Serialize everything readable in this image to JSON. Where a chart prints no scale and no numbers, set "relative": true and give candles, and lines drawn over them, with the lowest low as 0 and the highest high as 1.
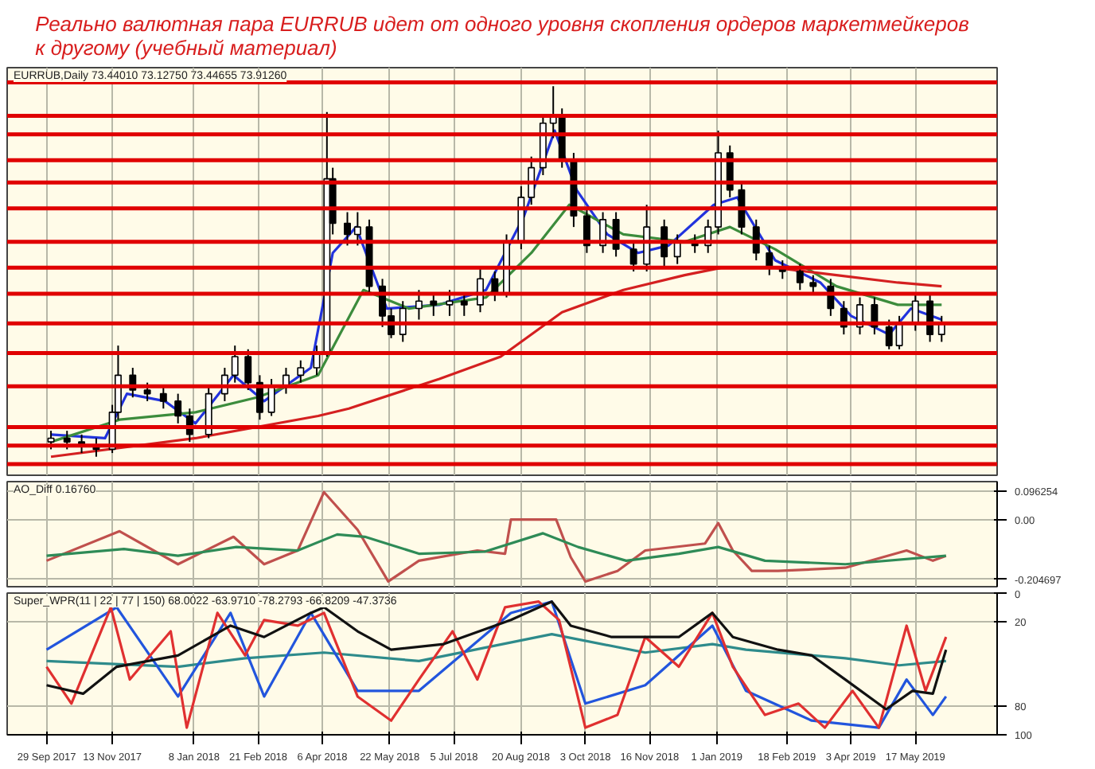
{
  "chart_data": [
    {
      "type": "candlestick",
      "title": "Реально валютная пара EURRUB идет от одного уровня скопления ордеров маркетмейкеров к другому (учебный материал)",
      "annotations": [
        "EURRUB,Daily 73.44010 73.12750 73.44655 73.91260"
      ],
      "relative": true,
      "tick_labels": false,
      "grid": "x",
      "xlim": [
        "2017-09-02",
        "2019-07-12"
      ],
      "xticks": [
        {
          "value": "2017-09-29",
          "label": null
        },
        {
          "value": "2017-11-13",
          "label": null
        },
        {
          "value": "2018-01-08",
          "label": null
        },
        {
          "value": "2018-02-21",
          "label": null
        },
        {
          "value": "2018-04-06",
          "label": null
        },
        {
          "value": "2018-05-22",
          "label": null
        },
        {
          "value": "2018-07-05",
          "label": null
        },
        {
          "value": "2018-08-20",
          "label": null
        },
        {
          "value": "2018-10-03",
          "label": null
        },
        {
          "value": "2018-11-16",
          "label": null
        },
        {
          "value": "2019-01-01",
          "label": null
        },
        {
          "value": "2019-02-18",
          "label": null
        },
        {
          "value": "2019-04-03",
          "label": null
        },
        {
          "value": "2019-05-17",
          "label": null
        }
      ],
      "x": [
        "2017-10-02",
        "2017-10-13",
        "2017-10-23",
        "2017-11-02",
        "2017-11-13",
        "2017-11-17",
        "2017-11-27",
        "2017-12-07",
        "2017-12-18",
        "2017-12-28",
        "2018-01-05",
        "2018-01-18",
        "2018-01-29",
        "2018-02-05",
        "2018-02-14",
        "2018-02-22",
        "2018-03-02",
        "2018-03-12",
        "2018-03-22",
        "2018-04-02",
        "2018-04-09",
        "2018-04-13",
        "2018-04-23",
        "2018-04-30",
        "2018-05-08",
        "2018-05-17",
        "2018-05-23",
        "2018-05-31",
        "2018-06-11",
        "2018-06-21",
        "2018-07-02",
        "2018-07-12",
        "2018-07-23",
        "2018-08-02",
        "2018-08-10",
        "2018-08-20",
        "2018-08-27",
        "2018-09-04",
        "2018-09-11",
        "2018-09-17",
        "2018-09-25",
        "2018-10-04",
        "2018-10-15",
        "2018-10-24",
        "2018-11-05",
        "2018-11-14",
        "2018-11-26",
        "2018-12-05",
        "2018-12-17",
        "2018-12-26",
        "2019-01-02",
        "2019-01-10",
        "2019-01-18",
        "2019-01-28",
        "2019-02-06",
        "2019-02-15",
        "2019-02-27",
        "2019-03-08",
        "2019-03-20",
        "2019-03-29",
        "2019-04-09",
        "2019-04-19",
        "2019-04-29",
        "2019-05-06",
        "2019-05-17",
        "2019-05-27",
        "2019-06-04"
      ],
      "ohlc": [
        [
          0.04,
          0.07,
          0.02,
          0.05
        ],
        [
          0.05,
          0.07,
          0.02,
          0.04
        ],
        [
          0.04,
          0.06,
          0.01,
          0.03
        ],
        [
          0.03,
          0.05,
          0.0,
          0.02
        ],
        [
          0.02,
          0.14,
          0.01,
          0.12
        ],
        [
          0.12,
          0.3,
          0.1,
          0.22
        ],
        [
          0.22,
          0.24,
          0.16,
          0.18
        ],
        [
          0.18,
          0.2,
          0.15,
          0.17
        ],
        [
          0.17,
          0.19,
          0.13,
          0.15
        ],
        [
          0.15,
          0.17,
          0.09,
          0.11
        ],
        [
          0.11,
          0.13,
          0.04,
          0.06
        ],
        [
          0.06,
          0.19,
          0.05,
          0.17
        ],
        [
          0.17,
          0.24,
          0.15,
          0.22
        ],
        [
          0.22,
          0.3,
          0.2,
          0.27
        ],
        [
          0.27,
          0.29,
          0.18,
          0.2
        ],
        [
          0.2,
          0.22,
          0.1,
          0.12
        ],
        [
          0.12,
          0.21,
          0.11,
          0.19
        ],
        [
          0.19,
          0.24,
          0.17,
          0.22
        ],
        [
          0.22,
          0.26,
          0.2,
          0.24
        ],
        [
          0.24,
          0.3,
          0.22,
          0.28
        ],
        [
          0.28,
          0.93,
          0.27,
          0.75
        ],
        [
          0.75,
          0.78,
          0.6,
          0.63
        ],
        [
          0.63,
          0.66,
          0.57,
          0.6
        ],
        [
          0.6,
          0.66,
          0.57,
          0.62
        ],
        [
          0.62,
          0.64,
          0.44,
          0.46
        ],
        [
          0.46,
          0.48,
          0.35,
          0.38
        ],
        [
          0.38,
          0.4,
          0.32,
          0.33
        ],
        [
          0.33,
          0.42,
          0.31,
          0.4
        ],
        [
          0.4,
          0.45,
          0.37,
          0.42
        ],
        [
          0.42,
          0.44,
          0.38,
          0.41
        ],
        [
          0.41,
          0.45,
          0.38,
          0.42
        ],
        [
          0.42,
          0.44,
          0.38,
          0.41
        ],
        [
          0.41,
          0.51,
          0.39,
          0.48
        ],
        [
          0.48,
          0.5,
          0.42,
          0.44
        ],
        [
          0.44,
          0.6,
          0.43,
          0.58
        ],
        [
          0.58,
          0.73,
          0.56,
          0.7
        ],
        [
          0.7,
          0.81,
          0.68,
          0.78
        ],
        [
          0.78,
          0.92,
          0.76,
          0.9
        ],
        [
          0.9,
          1.0,
          0.86,
          0.92
        ],
        [
          0.92,
          0.94,
          0.78,
          0.8
        ],
        [
          0.8,
          0.82,
          0.62,
          0.65
        ],
        [
          0.65,
          0.67,
          0.55,
          0.57
        ],
        [
          0.57,
          0.66,
          0.55,
          0.64
        ],
        [
          0.64,
          0.66,
          0.54,
          0.56
        ],
        [
          0.56,
          0.58,
          0.5,
          0.52
        ],
        [
          0.52,
          0.68,
          0.5,
          0.62
        ],
        [
          0.62,
          0.64,
          0.51,
          0.54
        ],
        [
          0.54,
          0.6,
          0.52,
          0.58
        ],
        [
          0.58,
          0.6,
          0.55,
          0.57
        ],
        [
          0.57,
          0.64,
          0.55,
          0.62
        ],
        [
          0.62,
          0.88,
          0.6,
          0.82
        ],
        [
          0.82,
          0.84,
          0.7,
          0.72
        ],
        [
          0.72,
          0.74,
          0.6,
          0.62
        ],
        [
          0.62,
          0.64,
          0.53,
          0.55
        ],
        [
          0.55,
          0.57,
          0.49,
          0.51
        ],
        [
          0.51,
          0.53,
          0.48,
          0.5
        ],
        [
          0.5,
          0.52,
          0.45,
          0.47
        ],
        [
          0.47,
          0.49,
          0.44,
          0.46
        ],
        [
          0.46,
          0.48,
          0.38,
          0.4
        ],
        [
          0.4,
          0.42,
          0.33,
          0.35
        ],
        [
          0.35,
          0.43,
          0.33,
          0.41
        ],
        [
          0.41,
          0.43,
          0.33,
          0.35
        ],
        [
          0.35,
          0.37,
          0.29,
          0.3
        ],
        [
          0.3,
          0.38,
          0.29,
          0.36
        ],
        [
          0.36,
          0.44,
          0.34,
          0.42
        ],
        [
          0.42,
          0.44,
          0.31,
          0.33
        ],
        [
          0.33,
          0.38,
          0.31,
          0.36
        ]
      ],
      "series": [
        {
          "type": "line",
          "color": "#2233dd",
          "x": [
            "2017-10-02",
            "2017-11-08",
            "2017-11-23",
            "2017-12-19",
            "2018-01-09",
            "2018-02-04",
            "2018-02-25",
            "2018-03-29",
            "2018-04-13",
            "2018-04-29",
            "2018-05-20",
            "2018-06-25",
            "2018-07-27",
            "2018-08-22",
            "2018-09-12",
            "2018-09-27",
            "2018-10-18",
            "2018-11-08",
            "2018-11-29",
            "2018-12-30",
            "2019-01-15",
            "2019-02-10",
            "2019-03-13",
            "2019-04-03",
            "2019-04-29",
            "2019-05-14",
            "2019-06-04"
          ],
          "values": [
            0.06,
            0.05,
            0.17,
            0.15,
            0.09,
            0.22,
            0.15,
            0.24,
            0.55,
            0.62,
            0.4,
            0.41,
            0.45,
            0.65,
            0.88,
            0.72,
            0.6,
            0.55,
            0.57,
            0.68,
            0.7,
            0.53,
            0.47,
            0.38,
            0.33,
            0.4,
            0.37
          ]
        },
        {
          "type": "line",
          "color": "#3c8c3c",
          "x": [
            "2017-10-02",
            "2017-11-18",
            "2018-01-09",
            "2018-02-20",
            "2018-04-03",
            "2018-05-04",
            "2018-06-04",
            "2018-07-27",
            "2018-08-27",
            "2018-09-22",
            "2018-10-29",
            "2018-12-10",
            "2019-01-10",
            "2019-02-10",
            "2019-03-24",
            "2019-05-05",
            "2019-06-04"
          ],
          "values": [
            0.04,
            0.1,
            0.12,
            0.16,
            0.22,
            0.45,
            0.4,
            0.43,
            0.55,
            0.68,
            0.6,
            0.58,
            0.62,
            0.56,
            0.46,
            0.41,
            0.41
          ]
        },
        {
          "type": "line",
          "color": "#d42020",
          "x": [
            "2017-10-02",
            "2018-01-09",
            "2018-04-03",
            "2018-04-24",
            "2018-06-25",
            "2018-08-06",
            "2018-09-17",
            "2018-10-29",
            "2018-12-10",
            "2019-01-04",
            "2019-02-10",
            "2019-03-24",
            "2019-05-05",
            "2019-06-04"
          ],
          "values": [
            0.0,
            0.05,
            0.11,
            0.13,
            0.21,
            0.27,
            0.39,
            0.45,
            0.49,
            0.51,
            0.51,
            0.49,
            0.47,
            0.46
          ]
        }
      ],
      "ref_lines": [
        {
          "axis": "y",
          "value": 1.01,
          "color": "#e00000"
        },
        {
          "axis": "y",
          "value": 0.92,
          "color": "#e00000"
        },
        {
          "axis": "y",
          "value": 0.87,
          "color": "#e00000"
        },
        {
          "axis": "y",
          "value": 0.8,
          "color": "#e00000"
        },
        {
          "axis": "y",
          "value": 0.74,
          "color": "#e00000"
        },
        {
          "axis": "y",
          "value": 0.67,
          "color": "#e00000"
        },
        {
          "axis": "y",
          "value": 0.58,
          "color": "#e00000"
        },
        {
          "axis": "y",
          "value": 0.51,
          "color": "#e00000"
        },
        {
          "axis": "y",
          "value": 0.44,
          "color": "#e00000"
        },
        {
          "axis": "y",
          "value": 0.36,
          "color": "#e00000"
        },
        {
          "axis": "y",
          "value": 0.28,
          "color": "#e00000"
        },
        {
          "axis": "y",
          "value": 0.19,
          "color": "#e00000"
        },
        {
          "axis": "y",
          "value": 0.08,
          "color": "#e00000"
        },
        {
          "axis": "y",
          "value": 0.03,
          "color": "#e00000"
        },
        {
          "axis": "y",
          "value": -0.02,
          "color": "#e00000"
        }
      ]
    },
    {
      "type": "line",
      "annotations": [
        "AO_Diff 0.16760"
      ],
      "tick_labels": "y",
      "grid": true,
      "xlim": [
        "2017-09-02",
        "2019-07-12"
      ],
      "xticks": [
        {
          "value": "2017-09-29",
          "label": null
        },
        {
          "value": "2017-11-13",
          "label": null
        },
        {
          "value": "2018-01-08",
          "label": null
        },
        {
          "value": "2018-02-21",
          "label": null
        },
        {
          "value": "2018-04-06",
          "label": null
        },
        {
          "value": "2018-05-22",
          "label": null
        },
        {
          "value": "2018-07-05",
          "label": null
        },
        {
          "value": "2018-08-20",
          "label": null
        },
        {
          "value": "2018-10-03",
          "label": null
        },
        {
          "value": "2018-11-16",
          "label": null
        },
        {
          "value": "2019-01-01",
          "label": null
        },
        {
          "value": "2019-02-18",
          "label": null
        },
        {
          "value": "2019-04-03",
          "label": null
        },
        {
          "value": "2019-05-17",
          "label": null
        }
      ],
      "ylim": [
        -0.23,
        0.13
      ],
      "yticks": [
        -0.204697,
        {
          "value": 0,
          "label": "0.00"
        },
        0.096254
      ],
      "series": [
        {
          "color": "#c0504d",
          "x": [
            "2017-09-29",
            "2017-11-18",
            "2017-12-28",
            "2018-02-04",
            "2018-02-25",
            "2018-03-20",
            "2018-04-07",
            "2018-04-30",
            "2018-05-21",
            "2018-06-11",
            "2018-07-21",
            "2018-08-09",
            "2018-08-13",
            "2018-09-13",
            "2018-09-23",
            "2018-10-03",
            "2018-10-25",
            "2018-11-13",
            "2018-12-24",
            "2019-01-02",
            "2019-01-12",
            "2019-01-25",
            "2019-02-12",
            "2019-03-30",
            "2019-05-11",
            "2019-05-29",
            "2019-06-07"
          ],
          "values": [
            -0.141,
            -0.04,
            -0.153,
            -0.059,
            -0.153,
            -0.106,
            0.094,
            -0.035,
            -0.212,
            -0.141,
            -0.106,
            -0.117,
            0.0,
            0.0,
            -0.129,
            -0.212,
            -0.176,
            -0.106,
            -0.082,
            -0.012,
            -0.106,
            -0.176,
            -0.176,
            -0.165,
            -0.106,
            -0.141,
            -0.124
          ]
        },
        {
          "color": "#2e8b57",
          "x": [
            "2017-09-29",
            "2017-11-21",
            "2017-12-28",
            "2018-02-06",
            "2018-03-20",
            "2018-04-16",
            "2018-05-05",
            "2018-06-11",
            "2018-07-26",
            "2018-09-04",
            "2018-09-28",
            "2018-10-31",
            "2018-12-06",
            "2019-01-02",
            "2019-02-03",
            "2019-03-30",
            "2019-06-07"
          ],
          "values": [
            -0.124,
            -0.101,
            -0.124,
            -0.094,
            -0.106,
            -0.051,
            -0.059,
            -0.117,
            -0.11,
            -0.047,
            -0.094,
            -0.141,
            -0.117,
            -0.094,
            -0.141,
            -0.153,
            -0.124
          ]
        }
      ]
    },
    {
      "type": "line",
      "annotations": [
        "Super_WPR(11 | 22 | 77 | 150) 68.0022 -63.9710 -78.2793 -66.8209 -47.3736"
      ],
      "grid": true,
      "xlim": [
        "2017-09-02",
        "2019-07-12"
      ],
      "xticks": [
        {
          "value": "2017-09-29",
          "label": "29 Sep 2017"
        },
        {
          "value": "2017-11-13",
          "label": "13 Nov 2017"
        },
        {
          "value": "2018-01-08",
          "label": "8 Jan 2018"
        },
        {
          "value": "2018-02-21",
          "label": "21 Feb 2018"
        },
        {
          "value": "2018-04-06",
          "label": "6 Apr 2018"
        },
        {
          "value": "2018-05-22",
          "label": "22 May 2018"
        },
        {
          "value": "2018-07-05",
          "label": "5 Jul 2018"
        },
        {
          "value": "2018-08-20",
          "label": "20 Aug 2018"
        },
        {
          "value": "2018-10-03",
          "label": "3 Oct 2018"
        },
        {
          "value": "2018-11-16",
          "label": "16 Nov 2018"
        },
        {
          "value": "2019-01-01",
          "label": "1 Jan 2019"
        },
        {
          "value": "2019-02-18",
          "label": "18 Feb 2019"
        },
        {
          "value": "2019-04-03",
          "label": "3 Apr 2019"
        },
        {
          "value": "2019-05-17",
          "label": "17 May 2019"
        }
      ],
      "ylim": [
        100,
        0
      ],
      "yticks": [
        0,
        20,
        80,
        100
      ],
      "series": [
        {
          "color": "#2e8b8b",
          "x": [
            "2017-09-29",
            "2017-12-28",
            "2018-02-12",
            "2018-04-07",
            "2018-06-11",
            "2018-09-10",
            "2018-11-13",
            "2018-12-29",
            "2019-01-21",
            "2019-03-30",
            "2019-05-06",
            "2019-06-07"
          ],
          "values": [
            48,
            52,
            46,
            42,
            48,
            29,
            42,
            36,
            40,
            46,
            51,
            48
          ]
        },
        {
          "color": "#2255dd",
          "x": [
            "2017-09-29",
            "2017-11-16",
            "2017-12-28",
            "2018-02-02",
            "2018-02-25",
            "2018-03-29",
            "2018-04-30",
            "2018-06-11",
            "2018-08-13",
            "2018-09-10",
            "2018-10-03",
            "2018-11-13",
            "2018-12-29",
            "2019-01-21",
            "2019-03-07",
            "2019-04-22",
            "2019-05-11",
            "2019-05-29",
            "2019-06-07"
          ],
          "values": [
            40,
            10,
            73,
            14,
            73,
            14,
            69,
            69,
            14,
            6,
            78,
            65,
            23,
            69,
            90,
            95,
            61,
            86,
            73
          ]
        },
        {
          "color": "#e03030",
          "x": [
            "2017-09-29",
            "2017-10-16",
            "2017-11-12",
            "2017-11-25",
            "2017-12-23",
            "2018-01-03",
            "2018-01-24",
            "2018-02-12",
            "2018-02-25",
            "2018-03-20",
            "2018-04-07",
            "2018-04-30",
            "2018-05-23",
            "2018-06-11",
            "2018-07-04",
            "2018-07-21",
            "2018-08-09",
            "2018-09-01",
            "2018-09-15",
            "2018-10-03",
            "2018-10-25",
            "2018-11-13",
            "2018-12-06",
            "2018-12-29",
            "2019-01-12",
            "2019-02-03",
            "2019-02-26",
            "2019-03-16",
            "2019-04-04",
            "2019-04-22",
            "2019-05-11",
            "2019-05-24",
            "2019-06-07"
          ],
          "values": [
            52,
            78,
            10,
            61,
            27,
            95,
            14,
            44,
            19,
            23,
            14,
            73,
            90,
            61,
            27,
            61,
            10,
            6,
            19,
            95,
            86,
            31,
            52,
            14,
            52,
            86,
            78,
            95,
            69,
            95,
            23,
            69,
            31
          ]
        },
        {
          "color": "#111111",
          "x": [
            "2017-09-29",
            "2017-10-24",
            "2017-11-16",
            "2017-12-28",
            "2018-02-02",
            "2018-02-25",
            "2018-03-29",
            "2018-04-07",
            "2018-04-30",
            "2018-05-23",
            "2018-06-28",
            "2018-08-13",
            "2018-09-10",
            "2018-09-23",
            "2018-10-21",
            "2018-12-06",
            "2018-12-29",
            "2019-01-12",
            "2019-02-12",
            "2019-03-07",
            "2019-03-30",
            "2019-04-27",
            "2019-05-15",
            "2019-05-29",
            "2019-06-07"
          ],
          "values": [
            65,
            71,
            52,
            44,
            23,
            31,
            14,
            10,
            27,
            40,
            36,
            19,
            6,
            23,
            31,
            31,
            14,
            31,
            40,
            44,
            61,
            82,
            69,
            71,
            40
          ]
        }
      ]
    }
  ]
}
